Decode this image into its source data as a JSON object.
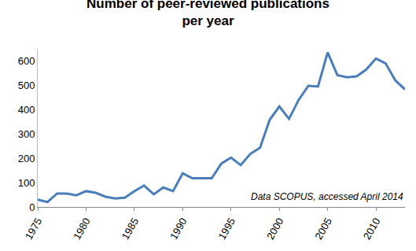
{
  "chart_data": {
    "type": "line",
    "title": "Number of peer-reviewed publications\nper year",
    "annotations": [
      "Data SCOPUS, accessed April 2014"
    ],
    "x": [
      1975,
      1976,
      1977,
      1978,
      1979,
      1980,
      1981,
      1982,
      1983,
      1984,
      1985,
      1986,
      1987,
      1988,
      1989,
      1990,
      1991,
      1992,
      1993,
      1994,
      1995,
      1996,
      1997,
      1998,
      1999,
      2000,
      2001,
      2002,
      2003,
      2004,
      2005,
      2006,
      2007,
      2008,
      2009,
      2010,
      2011,
      2012,
      2013
    ],
    "values": [
      30,
      20,
      55,
      55,
      48,
      65,
      58,
      42,
      35,
      38,
      65,
      88,
      52,
      80,
      65,
      138,
      118,
      118,
      118,
      178,
      203,
      172,
      218,
      243,
      358,
      413,
      362,
      440,
      498,
      495,
      635,
      542,
      533,
      537,
      565,
      610,
      590,
      520,
      483
    ],
    "color": "#4a7ebb",
    "xlim": [
      1975,
      2013
    ],
    "xticks": [
      1975,
      1980,
      1985,
      1990,
      1995,
      2000,
      2005,
      2010
    ],
    "ylim": [
      0,
      650
    ],
    "yticks": [
      0,
      100,
      200,
      300,
      400,
      500,
      600
    ],
    "grid": false
  }
}
